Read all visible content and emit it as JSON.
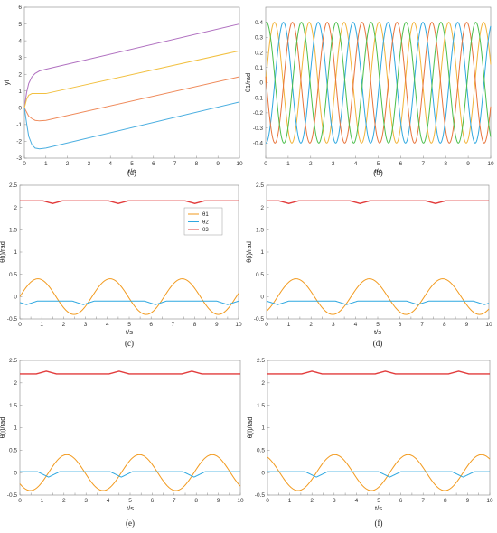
{
  "chart_data": [
    {
      "type": "line",
      "caption": "(a)",
      "xlabel": "t/s",
      "ylabel": "yi",
      "xlim": [
        0,
        10
      ],
      "ylim": [
        -3,
        6
      ],
      "xticks": [
        0,
        1,
        2,
        3,
        4,
        5,
        6,
        7,
        8,
        9,
        10
      ],
      "yticks": [
        -3,
        -2,
        -1,
        0,
        1,
        2,
        3,
        4,
        5,
        6
      ],
      "series": [
        {
          "color": "#b070c0",
          "x": [
            0,
            0.1,
            0.2,
            0.35,
            0.5,
            0.7,
            1,
            10
          ],
          "y": [
            0,
            0.9,
            1.45,
            1.85,
            2.05,
            2.2,
            2.3,
            5.0
          ]
        },
        {
          "color": "#f2c040",
          "x": [
            0,
            0.1,
            0.2,
            0.35,
            0.5,
            0.7,
            1,
            10
          ],
          "y": [
            0,
            0.5,
            0.75,
            0.85,
            0.85,
            0.85,
            0.85,
            3.4
          ]
        },
        {
          "color": "#ef8a5a",
          "x": [
            0,
            0.1,
            0.2,
            0.35,
            0.5,
            0.7,
            1,
            10
          ],
          "y": [
            0,
            -0.25,
            -0.5,
            -0.65,
            -0.75,
            -0.78,
            -0.75,
            1.85
          ]
        },
        {
          "color": "#4aaee0",
          "x": [
            0,
            0.1,
            0.2,
            0.35,
            0.5,
            0.7,
            1,
            10
          ],
          "y": [
            0,
            -0.9,
            -1.7,
            -2.2,
            -2.4,
            -2.45,
            -2.4,
            0.35
          ]
        }
      ]
    },
    {
      "type": "line",
      "caption": "(b)",
      "xlabel": "t/s",
      "ylabel": "θ1/rad",
      "xlim": [
        0,
        10
      ],
      "ylim": [
        -0.5,
        0.5
      ],
      "xticks": [
        0,
        1,
        2,
        3,
        4,
        5,
        6,
        7,
        8,
        9,
        10
      ],
      "yticks": [
        -0.4,
        -0.3,
        -0.2,
        -0.1,
        0,
        0.1,
        0.2,
        0.3,
        0.4
      ],
      "series": [
        {
          "color": "#f2b43a",
          "amplitude": 0.4,
          "period": 1.55,
          "phase": 0
        },
        {
          "color": "#2fa8e0",
          "amplitude": 0.4,
          "period": 1.55,
          "phase": 0.4
        },
        {
          "color": "#e8743b",
          "amplitude": 0.4,
          "period": 1.55,
          "phase": 0.8
        },
        {
          "color": "#4cbf4c",
          "amplitude": 0.4,
          "period": 1.55,
          "phase": 1.2
        }
      ]
    },
    {
      "type": "line",
      "caption": "(c)",
      "xlabel": "t/s",
      "ylabel": "θ(i)/rad",
      "xlim": [
        0,
        10
      ],
      "ylim": [
        -0.5,
        2.5
      ],
      "xticks": [
        0,
        0.5,
        1,
        1.5,
        2,
        2.5,
        3,
        3.5,
        4,
        4.5,
        5,
        5.5,
        6,
        6.5,
        7,
        7.5,
        8,
        8.5,
        9,
        9.5,
        10
      ],
      "xticklabels": [
        "0",
        "",
        "1",
        "",
        "2",
        "",
        "3",
        "",
        "4",
        "",
        "5",
        "",
        "6",
        "",
        "7",
        "",
        "8",
        "",
        "9",
        "",
        "10"
      ],
      "yticks": [
        -0.5,
        0,
        0.5,
        1,
        1.5,
        2,
        2.5
      ],
      "legend": {
        "position": "upper-right",
        "entries": [
          "θ1",
          "θ2",
          "θ3"
        ]
      },
      "series": [
        {
          "name": "θ1",
          "color": "#f29a1e",
          "amplitude": 0.4,
          "period": 3.3,
          "phase": 0
        },
        {
          "name": "θ2",
          "color": "#2fa8e0",
          "base": -0.1,
          "dips": [
            0.3,
            2.9,
            6.2,
            9.5
          ],
          "dip_depth": 0.08
        },
        {
          "name": "θ3",
          "color": "#e23b3b",
          "base": 2.15,
          "bumps": [
            1.5,
            4.5,
            8.0
          ],
          "bump_height": 0.06
        }
      ]
    },
    {
      "type": "line",
      "caption": "(d)",
      "xlabel": "t/s",
      "ylabel": "θ(i)/rad",
      "xlim": [
        0,
        10
      ],
      "ylim": [
        -0.5,
        2.5
      ],
      "xticks": [
        0,
        0.5,
        1,
        1.5,
        2,
        2.5,
        3,
        3.5,
        4,
        4.5,
        5,
        5.5,
        6,
        6.5,
        7,
        7.5,
        8,
        8.5,
        9,
        9.5,
        10
      ],
      "xticklabels": [
        "0",
        "",
        "1",
        "",
        "2",
        "",
        "3",
        "",
        "4",
        "",
        "5",
        "",
        "6",
        "",
        "7",
        "",
        "8",
        "",
        "9",
        "",
        "10"
      ],
      "yticks": [
        -0.5,
        0,
        0.5,
        1,
        1.5,
        2,
        2.5
      ],
      "series": [
        {
          "name": "θ1",
          "color": "#f29a1e",
          "amplitude": 0.4,
          "period": 3.3,
          "phase": 0.5
        },
        {
          "name": "θ2",
          "color": "#2fa8e0",
          "base": -0.1,
          "dips": [
            0.5,
            3.6,
            6.8,
            9.8
          ],
          "dip_depth": 0.08
        },
        {
          "name": "θ3",
          "color": "#e23b3b",
          "base": 2.15,
          "bumps": [
            1.0,
            4.2,
            7.6
          ],
          "bump_height": 0.06
        }
      ]
    },
    {
      "type": "line",
      "caption": "(e)",
      "xlabel": "t/s",
      "ylabel": "θ(i)/rad",
      "xlim": [
        0,
        10
      ],
      "ylim": [
        -0.5,
        2.5
      ],
      "xticks": [
        0,
        0.5,
        1,
        1.5,
        2,
        2.5,
        3,
        3.5,
        4,
        4.5,
        5,
        5.5,
        6,
        6.5,
        7,
        7.5,
        8,
        8.5,
        9,
        9.5,
        10
      ],
      "xticklabels": [
        "0",
        "",
        "1",
        "",
        "2",
        "",
        "3",
        "",
        "4",
        "",
        "5",
        "",
        "6",
        "",
        "7",
        "",
        "8",
        "",
        "9",
        "",
        "10"
      ],
      "yticks": [
        -0.5,
        0,
        0.5,
        1,
        1.5,
        2,
        2.5
      ],
      "series": [
        {
          "name": "θ1",
          "color": "#f29a1e",
          "amplitude": 0.4,
          "period": 3.3,
          "phase": 1.3
        },
        {
          "name": "θ2",
          "color": "#2fa8e0",
          "base": 0.02,
          "dips": [
            1.3,
            4.6,
            7.9
          ],
          "dip_depth": 0.12
        },
        {
          "name": "θ3",
          "color": "#e23b3b",
          "base": 2.2,
          "bumps": [
            1.2,
            4.5,
            7.8
          ],
          "bump_height": -0.06
        }
      ]
    },
    {
      "type": "line",
      "caption": "(f)",
      "xlabel": "t/s",
      "ylabel": "θ(i)/rad",
      "xlim": [
        0,
        10
      ],
      "ylim": [
        -0.5,
        2.5
      ],
      "xticks": [
        0,
        0.5,
        1,
        1.5,
        2,
        2.5,
        3,
        3.5,
        4,
        4.5,
        5,
        5.5,
        6,
        6.5,
        7,
        7.5,
        8,
        8.5,
        9,
        9.5,
        10
      ],
      "xticklabels": [
        "0",
        "",
        "1",
        "",
        "2",
        "",
        "3",
        "",
        "4",
        "",
        "5",
        "",
        "6",
        "",
        "7",
        "",
        "8",
        "",
        "9",
        "",
        "10"
      ],
      "yticks": [
        -0.5,
        0,
        0.5,
        1,
        1.5,
        2,
        2.5
      ],
      "series": [
        {
          "name": "θ1",
          "color": "#f29a1e",
          "amplitude": 0.4,
          "period": 3.3,
          "phase": 2.2
        },
        {
          "name": "θ2",
          "color": "#2fa8e0",
          "base": 0.02,
          "dips": [
            2.2,
            5.5,
            8.8
          ],
          "dip_depth": 0.12
        },
        {
          "name": "θ3",
          "color": "#e23b3b",
          "base": 2.2,
          "bumps": [
            2.0,
            5.3,
            8.6
          ],
          "bump_height": -0.06
        }
      ]
    }
  ]
}
